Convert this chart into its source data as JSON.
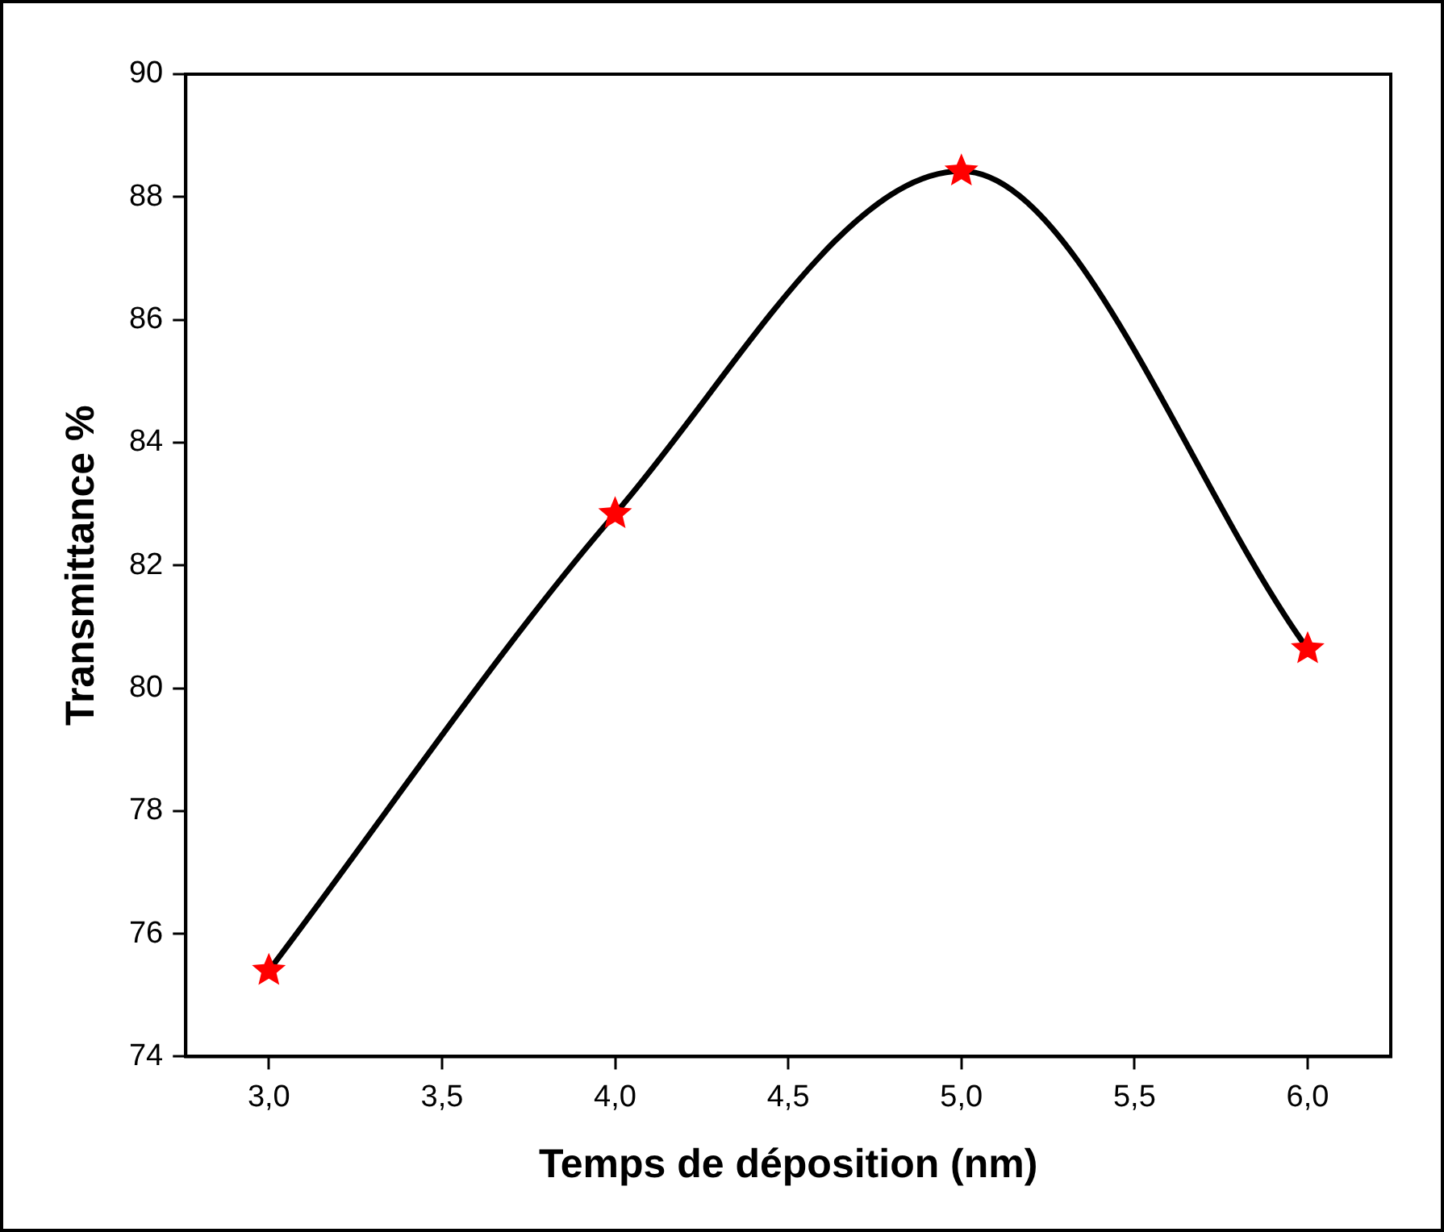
{
  "chart_data": {
    "type": "line",
    "xlabel": "Temps de déposition (nm)",
    "ylabel": "Transmittance %",
    "x": [
      3,
      4,
      5,
      6
    ],
    "series": [
      {
        "color": "#000000",
        "values": [
          75.4,
          82.84,
          88.42,
          80.64
        ],
        "marker": "none"
      },
      {
        "type": "scatter",
        "color": "#ff0000",
        "values": [
          75.4,
          82.84,
          88.42,
          80.64
        ],
        "marker": "star"
      }
    ],
    "xlim": [
      2.76,
      6.24
    ],
    "ylim": [
      74,
      90
    ],
    "xticks": [
      {
        "value": 3,
        "label": "3,0"
      },
      {
        "value": 3.5,
        "label": "3,5"
      },
      {
        "value": 4,
        "label": "4,0"
      },
      {
        "value": 4.5,
        "label": "4,5"
      },
      {
        "value": 5,
        "label": "5,0"
      },
      {
        "value": 5.5,
        "label": "5,5"
      },
      {
        "value": 6,
        "label": "6,0"
      }
    ],
    "yticks": [
      74,
      76,
      78,
      80,
      82,
      84,
      86,
      88,
      90
    ],
    "grid": false,
    "legend": false
  }
}
